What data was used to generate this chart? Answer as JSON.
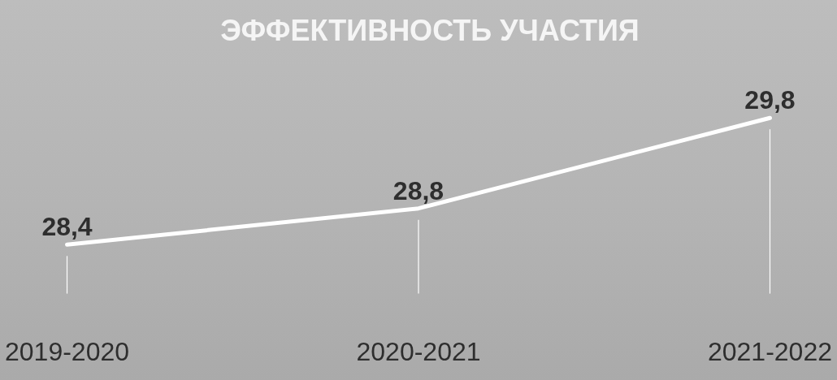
{
  "chart_data": {
    "type": "line",
    "title": "ЭФФЕКТИВНОСТЬ УЧАСТИЯ",
    "categories": [
      "2019-2020",
      "2020-2021",
      "2021-2022"
    ],
    "series": [
      {
        "color": "#ffffff",
        "values": [
          28.4,
          28.8,
          29.8
        ],
        "value_labels": [
          "28,4",
          "28,8",
          "29,8"
        ]
      }
    ],
    "tick_labels": "x",
    "grid": "x",
    "legend": false,
    "marker": "none",
    "line_style": "solid"
  }
}
